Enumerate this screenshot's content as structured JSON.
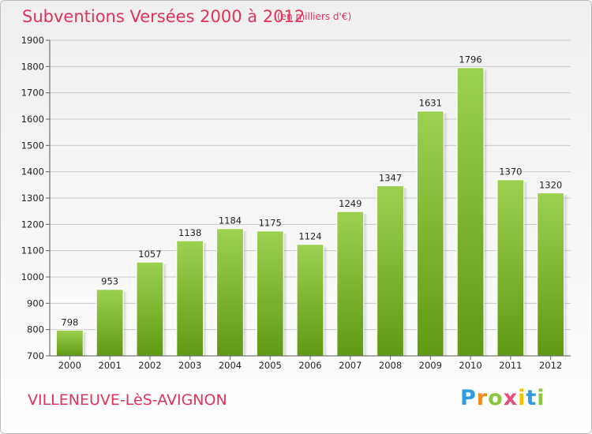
{
  "header": {
    "title": "Subventions Versées 2000 à 2012",
    "subtitle": "(en milliers d'€)"
  },
  "footer": {
    "commune": "VILLENEUVE-LèS-AVIGNON",
    "logo_letters": [
      "P",
      "r",
      "o",
      "x",
      "i",
      "t",
      "i"
    ]
  },
  "colors": {
    "title": "#e0325a",
    "bar_top": "#9dd150",
    "bar_bottom": "#5f9a12",
    "logo": [
      "#2f9be0",
      "#f08c1c",
      "#8cc63f",
      "#e94e77",
      "#f5c400",
      "#2f9be0",
      "#8cc63f"
    ]
  },
  "chart_data": {
    "type": "bar",
    "title": "Subventions Versées 2000 à 2012",
    "subtitle": "(en milliers d'€)",
    "categories": [
      "2000",
      "2001",
      "2002",
      "2003",
      "2004",
      "2005",
      "2006",
      "2007",
      "2008",
      "2009",
      "2010",
      "2011",
      "2012"
    ],
    "values": [
      798,
      953,
      1057,
      1138,
      1184,
      1175,
      1124,
      1249,
      1347,
      1631,
      1796,
      1370,
      1320
    ],
    "yticks": [
      700,
      800,
      900,
      1000,
      1100,
      1200,
      1300,
      1400,
      1500,
      1600,
      1700,
      1800,
      1900
    ],
    "ylim": [
      700,
      1900
    ],
    "grid": true,
    "data_labels": true
  }
}
